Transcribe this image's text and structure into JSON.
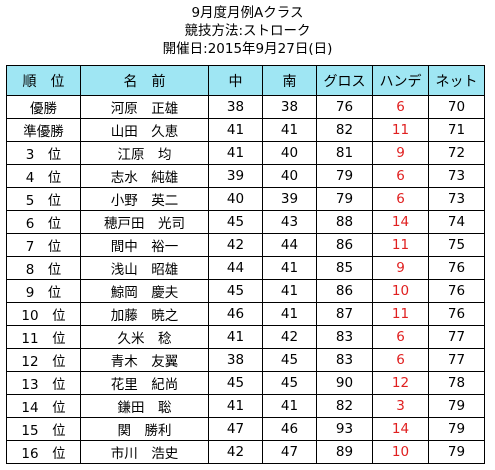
{
  "titles": {
    "line1": "9月度月例Aクラス",
    "line2": "競技方法:ストローク",
    "line3": "開催日:2015年9月27日(日)"
  },
  "colors": {
    "header_bg": "#9fe6f3",
    "handicap_text": "#e02020"
  },
  "table": {
    "headers": [
      "順　位",
      "名　前",
      "中",
      "南",
      "グロス",
      "ハンデ",
      "ネット"
    ],
    "rows": [
      [
        "優勝",
        "河原　正雄",
        "38",
        "38",
        "76",
        "6",
        "70"
      ],
      [
        "準優勝",
        "山田　久恵",
        "41",
        "41",
        "82",
        "11",
        "71"
      ],
      [
        "3　位",
        "江原　均",
        "41",
        "40",
        "81",
        "9",
        "72"
      ],
      [
        "4　位",
        "志水　純雄",
        "39",
        "40",
        "79",
        "6",
        "73"
      ],
      [
        "5　位",
        "小野　英二",
        "40",
        "39",
        "79",
        "6",
        "73"
      ],
      [
        "6　位",
        "穂戸田　光司",
        "45",
        "43",
        "88",
        "14",
        "74"
      ],
      [
        "7　位",
        "間中　裕一",
        "42",
        "44",
        "86",
        "11",
        "75"
      ],
      [
        "8　位",
        "浅山　昭雄",
        "44",
        "41",
        "85",
        "9",
        "76"
      ],
      [
        "9　位",
        "鯨岡　慶夫",
        "45",
        "41",
        "86",
        "10",
        "76"
      ],
      [
        "10　位",
        "加藤　暁之",
        "46",
        "41",
        "87",
        "11",
        "76"
      ],
      [
        "11　位",
        "久米　稔",
        "41",
        "42",
        "83",
        "6",
        "77"
      ],
      [
        "12　位",
        "青木　友翼",
        "38",
        "45",
        "83",
        "6",
        "77"
      ],
      [
        "13　位",
        "花里　紀尚",
        "45",
        "45",
        "90",
        "12",
        "78"
      ],
      [
        "14　位",
        "鎌田　聡",
        "41",
        "41",
        "82",
        "3",
        "79"
      ],
      [
        "15　位",
        "関　勝利",
        "47",
        "46",
        "93",
        "14",
        "79"
      ],
      [
        "16　位",
        "市川　浩史",
        "42",
        "47",
        "89",
        "10",
        "79"
      ]
    ]
  }
}
